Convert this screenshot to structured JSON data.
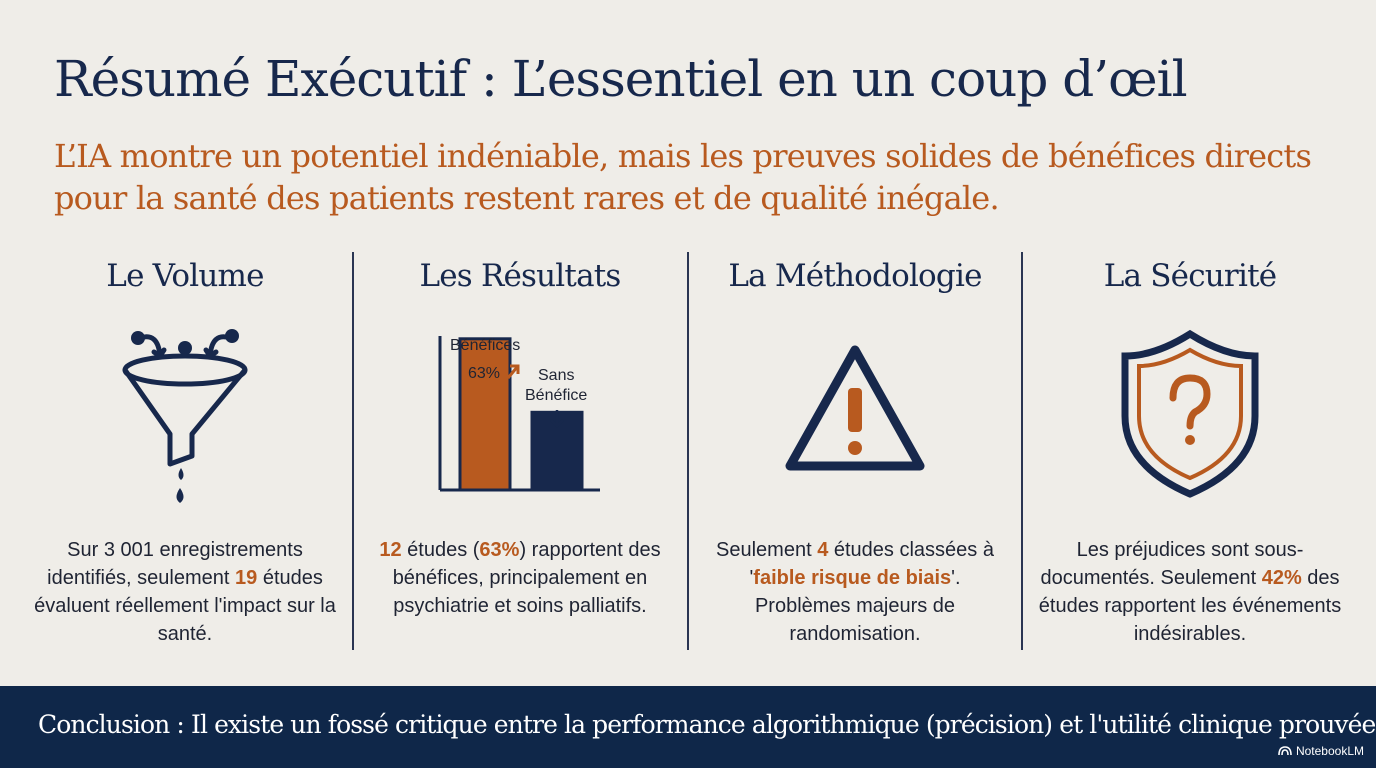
{
  "header": {
    "title": "Résumé Exécutif : L’essentiel en un coup d’œil",
    "subtitle": "L’IA montre un potentiel indéniable, mais les preuves solides de bénéfices directs pour la santé des patients restent rares et de qualité inégale."
  },
  "columns": [
    {
      "title": "Le Volume",
      "icon": "funnel-icon",
      "text": {
        "part1": "Sur 3 001 enregistrements identifiés, seulement ",
        "hl1": "19",
        "part2": " études évaluent réellement l'impact sur la santé."
      }
    },
    {
      "title": "Les Résultats",
      "icon": "bar-chart-icon",
      "chart": {
        "benefit_label": "Bénéfices",
        "benefit_value": "63%",
        "no_benefit_label_1": "Sans",
        "no_benefit_label_2": "Bénéfice"
      },
      "text": {
        "hl1": "12",
        "part1": " études (",
        "hl2": "63%",
        "part2": ") rapportent des bénéfices, principalement en psychiatrie et soins palliatifs."
      }
    },
    {
      "title": "La Méthodologie",
      "icon": "warning-icon",
      "text": {
        "part1": "Seulement ",
        "hl1": "4",
        "part2": " études classées à '",
        "hl2": "faible risque de biais",
        "part3": "'. Problèmes majeurs de randomisation."
      }
    },
    {
      "title": "La Sécurité",
      "icon": "shield-question-icon",
      "text": {
        "part1": "Les préjudices sont sous-documentés. Seulement ",
        "hl1": "42%",
        "part2": " des études rapportent les événements indésirables."
      }
    }
  ],
  "chart_data": {
    "type": "bar",
    "categories": [
      "Bénéfices",
      "Sans Bénéfice"
    ],
    "values": [
      63,
      37
    ],
    "title": "",
    "ylim": [
      0,
      100
    ]
  },
  "footer": {
    "conclusion": "Conclusion : Il existe un fossé critique entre la performance algorithmique (précision) et l'utilité clinique prouvée.",
    "brand": "NotebookLM"
  },
  "colors": {
    "navy": "#17284c",
    "orange": "#b85a1f",
    "background": "#efede8",
    "footer": "#0f2749"
  }
}
